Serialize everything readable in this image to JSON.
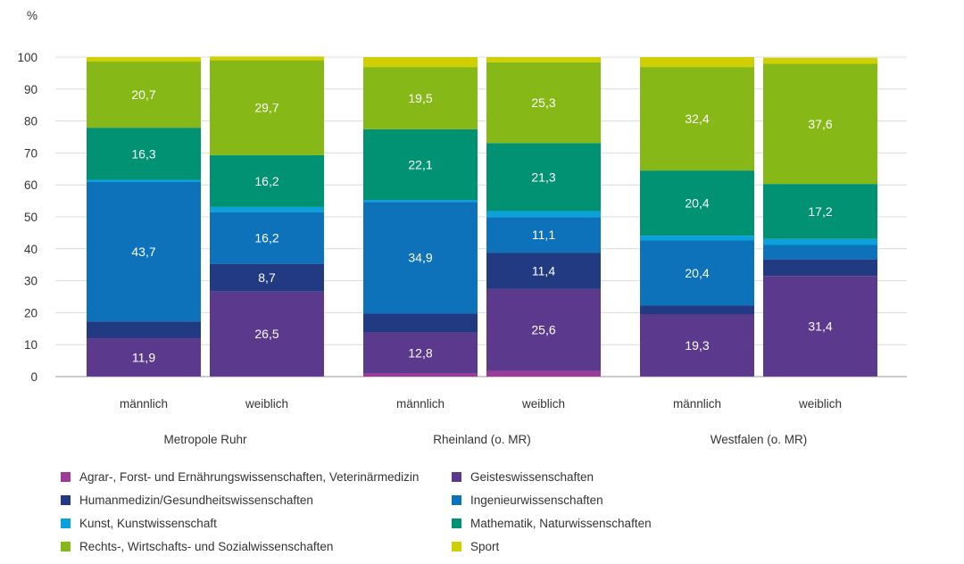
{
  "chart_data": {
    "type": "bar",
    "stacked": true,
    "ylabel": "%",
    "ylim": [
      0,
      100
    ],
    "yticks": [
      0,
      10,
      20,
      30,
      40,
      50,
      60,
      70,
      80,
      90,
      100
    ],
    "grid": true,
    "groups": [
      {
        "label": "Metropole Ruhr",
        "bars": [
          "männlich",
          "weiblich"
        ]
      },
      {
        "label": "Rheinland (o. MR)",
        "bars": [
          "männlich",
          "weiblich"
        ]
      },
      {
        "label": "Westfalen (o. MR)",
        "bars": [
          "männlich",
          "weiblich"
        ]
      }
    ],
    "categories": [
      "Metropole Ruhr männlich",
      "Metropole Ruhr weiblich",
      "Rheinland (o. MR) männlich",
      "Rheinland (o. MR) weiblich",
      "Westfalen (o. MR) männlich",
      "Westfalen (o. MR) weiblich"
    ],
    "series": [
      {
        "name": "Agrar-, Forst- und Ernährungswissenschaften, Veterinärmedizin",
        "color": "#9B3D96",
        "values": [
          0.1,
          0.1,
          1.0,
          1.8,
          0.1,
          0.1
        ],
        "labels": [
          "",
          "",
          "",
          "",
          "",
          ""
        ]
      },
      {
        "name": "Geisteswissenschaften",
        "color": "#5B3A8E",
        "values": [
          11.9,
          26.5,
          12.8,
          25.6,
          19.3,
          31.4
        ],
        "labels": [
          "11,9",
          "26,5",
          "12,8",
          "25,6",
          "19,3",
          "31,4"
        ]
      },
      {
        "name": "Humanmedizin/Gesundheitswissenschaften",
        "color": "#213A81",
        "values": [
          5.2,
          8.7,
          6.0,
          11.4,
          2.8,
          5.2
        ],
        "labels": [
          "",
          "8,7",
          "",
          "11,4",
          "",
          ""
        ]
      },
      {
        "name": "Ingenieurwissenschaften",
        "color": "#0E72BA",
        "values": [
          43.7,
          16.2,
          34.9,
          11.1,
          20.4,
          4.5
        ],
        "labels": [
          "43,7",
          "16,2",
          "34,9",
          "11,1",
          "20,4",
          ""
        ]
      },
      {
        "name": "Kunst, Kunstwissenschaft",
        "color": "#0AA1DD",
        "values": [
          0.7,
          1.6,
          0.6,
          1.9,
          1.5,
          1.9
        ],
        "labels": [
          "",
          "",
          "",
          "",
          "",
          ""
        ]
      },
      {
        "name": "Mathematik, Naturwissenschaften",
        "color": "#009272",
        "values": [
          16.3,
          16.2,
          22.1,
          21.3,
          20.4,
          17.2
        ],
        "labels": [
          "16,3",
          "16,2",
          "22,1",
          "21,3",
          "20,4",
          "17,2"
        ]
      },
      {
        "name": "Rechts-, Wirtschafts- und Sozialwissenschaften",
        "color": "#86B918",
        "values": [
          20.7,
          29.7,
          19.5,
          25.3,
          32.4,
          37.6
        ],
        "labels": [
          "20,7",
          "29,7",
          "19,5",
          "25,3",
          "32,4",
          "37,6"
        ]
      },
      {
        "name": "Sport",
        "color": "#D0CF00",
        "values": [
          1.4,
          1.2,
          3.1,
          1.6,
          3.1,
          1.9
        ],
        "labels": [
          "",
          "",
          "",
          "",
          "",
          ""
        ]
      }
    ],
    "legend_order": [
      0,
      1,
      2,
      3,
      4,
      5,
      6,
      7
    ]
  }
}
